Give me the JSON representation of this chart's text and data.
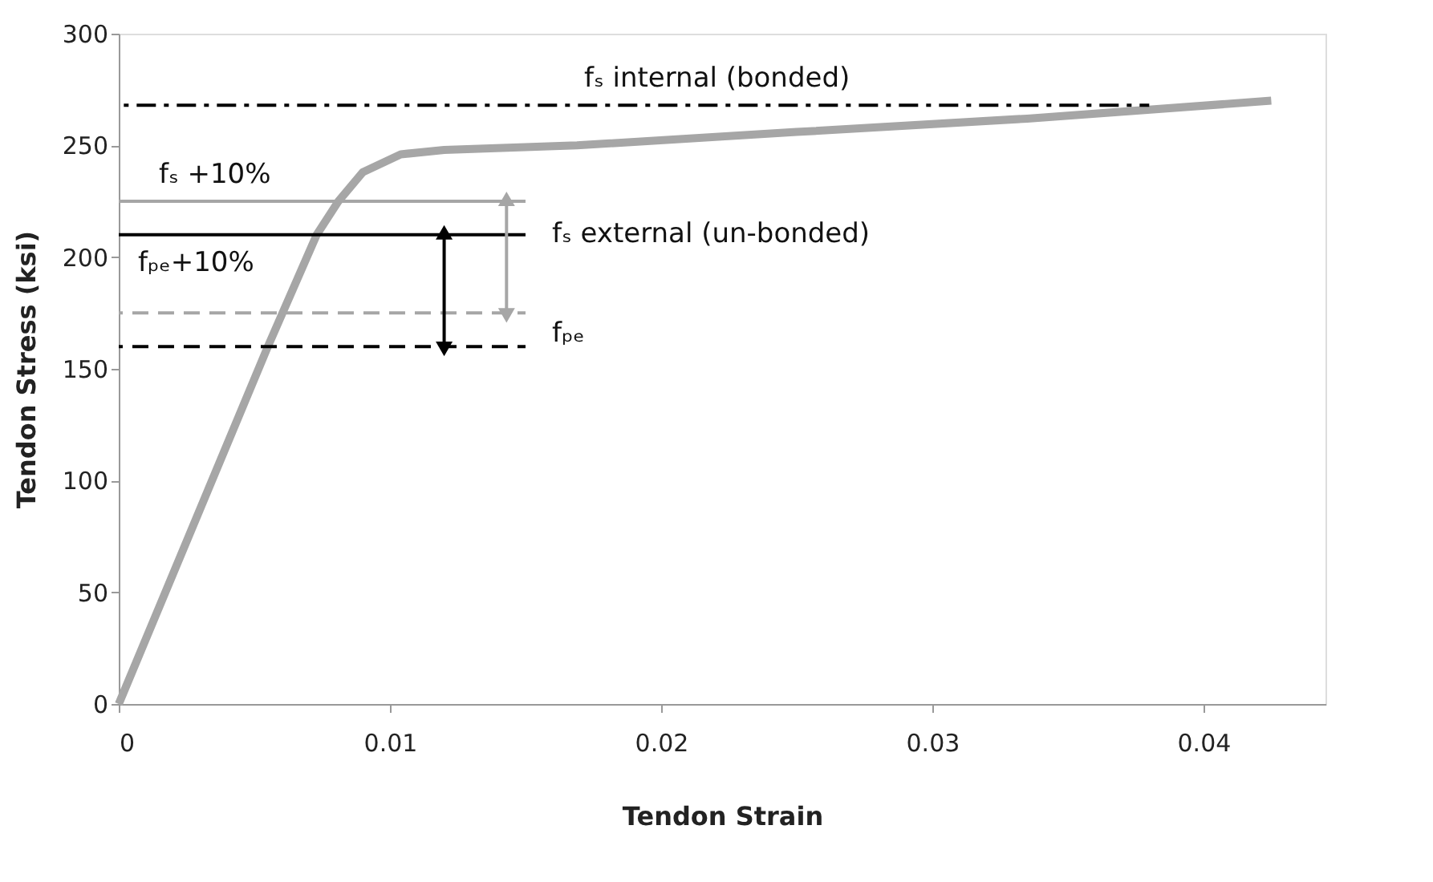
{
  "chart_data": {
    "type": "line",
    "xlabel": "Tendon Strain",
    "ylabel": "Tendon Stress (ksi)",
    "xlim": [
      0,
      0.0445
    ],
    "xticks": [
      0,
      0.01,
      0.02,
      0.03,
      0.04
    ],
    "ylim": [
      0,
      300
    ],
    "yticks": [
      0,
      50,
      100,
      150,
      200,
      250,
      300
    ],
    "grid": false,
    "marker": "none",
    "line_style": "solid",
    "series": [
      {
        "color": "#a6a6a6",
        "x": [
          0,
          0.0055,
          0.0073,
          0.0081,
          0.009,
          0.0104,
          0.012,
          0.0169,
          0.025,
          0.0335,
          0.0425
        ],
        "values": [
          0,
          160,
          210,
          225,
          238,
          246,
          248,
          250,
          256,
          262,
          270
        ]
      },
      {
        "color": "#000000",
        "x": [
          0,
          0.038
        ],
        "values": [
          268,
          268
        ],
        "line_style": "dashdot"
      },
      {
        "color": "#a6a6a6",
        "x": [
          0,
          0.015
        ],
        "values": [
          225,
          225
        ]
      },
      {
        "color": "#000000",
        "x": [
          0,
          0.015
        ],
        "values": [
          210,
          210
        ]
      },
      {
        "color": "#a6a6a6",
        "x": [
          0,
          0.015
        ],
        "values": [
          175,
          175
        ],
        "line_style": "dashed"
      },
      {
        "color": "#000000",
        "x": [
          0,
          0.015
        ],
        "values": [
          160,
          160
        ],
        "line_style": "dashed"
      },
      {
        "color": "#000000",
        "x": [
          0.012,
          0.012
        ],
        "values": [
          160,
          210
        ],
        "marker": "triangle"
      },
      {
        "color": "#a6a6a6",
        "x": [
          0.0143,
          0.0143
        ],
        "values": [
          175,
          225
        ],
        "marker": "triangle"
      }
    ],
    "annotations": [
      "fₛ internal (bonded)",
      "fₛ +10%",
      "fₛ external (un-bonded)",
      "fₚₑ+10%",
      "fₚₑ"
    ]
  }
}
